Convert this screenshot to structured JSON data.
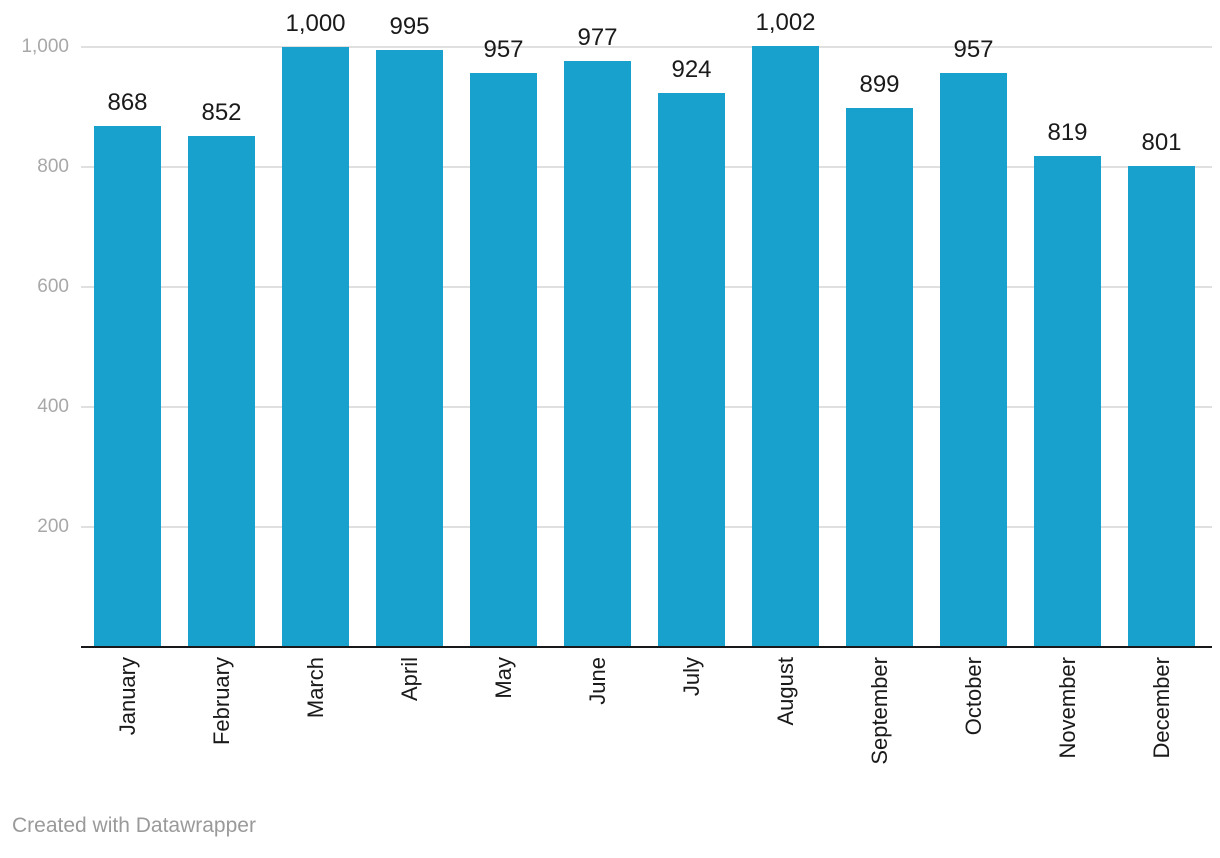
{
  "chart_data": {
    "type": "bar",
    "title": "",
    "xlabel": "",
    "ylabel": "",
    "categories": [
      "January",
      "February",
      "March",
      "April",
      "May",
      "June",
      "July",
      "August",
      "September",
      "October",
      "November",
      "December"
    ],
    "values": [
      868,
      852,
      1000,
      995,
      957,
      977,
      924,
      1002,
      899,
      957,
      819,
      801
    ],
    "value_labels": [
      "868",
      "852",
      "1,000",
      "995",
      "957",
      "977",
      "924",
      "1,002",
      "899",
      "957",
      "819",
      "801"
    ],
    "yticks": [
      200,
      400,
      600,
      800,
      1000
    ],
    "ytick_labels": [
      "200",
      "400",
      "600",
      "800",
      "1,000"
    ],
    "ylim": [
      0,
      1078
    ],
    "grid": "horizontal gridlines on, bars drawn over gridlines",
    "legend": "none",
    "x_label_rotation": -90
  },
  "footer": {
    "credit": "Created with Datawrapper"
  },
  "colors": {
    "bar": "#18A1CD",
    "gridline": "#E0E0E0",
    "axis_line": "#18181A",
    "value_label_text": "#1A1A1A",
    "month_label_text": "#1A1A1A",
    "y_label_text": "#A8A8A8",
    "footer_text": "#9A9A9A",
    "background": "#FFFFFF"
  }
}
